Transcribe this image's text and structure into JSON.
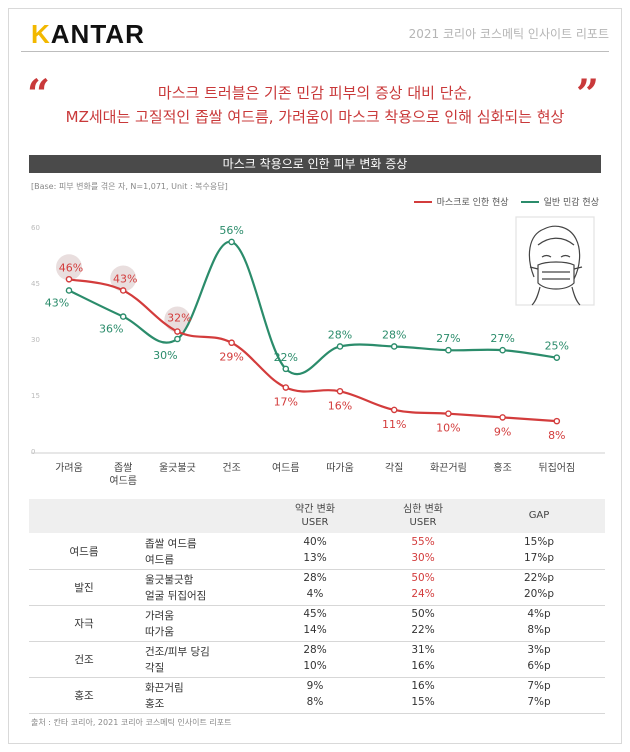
{
  "header": {
    "logo_k": "K",
    "logo_rest": "ANTAR",
    "report_title": "2021 코리아 코스메틱 인사이트 리포트"
  },
  "headline": {
    "open_quote": "“",
    "close_quote": "”",
    "line1": "마스크 트러블은 기존 민감 피부의  증상 대비 단순,",
    "line2": "MZ세대는 고질적인 좁쌀 여드름, 가려움이 마스크 착용으로 인해 심화되는 현상"
  },
  "chart_data": {
    "type": "line",
    "title": "마스크 착용으로 인한 피부 변화 증상",
    "base_note": "[Base: 피부 변화를 겪은 자, N=1,071, Unit : 복수응답]",
    "categories": [
      "가려움",
      "좁쌀\n여드름",
      "울긋불긋",
      "건조",
      "여드름",
      "따가움",
      "각질",
      "화끈거림",
      "홍조",
      "뒤집어짐"
    ],
    "y_ticks": [
      "60",
      "45",
      "30",
      "15",
      "0"
    ],
    "ylim": [
      0,
      60
    ],
    "legend_position": "top-right",
    "series": [
      {
        "name": "마스크로 인한 현상",
        "color": "#d33c3c",
        "values": [
          46,
          43,
          32,
          29,
          17,
          16,
          11,
          10,
          9,
          8
        ],
        "labels": [
          "46%",
          "43%",
          "32%",
          "29%",
          "17%",
          "16%",
          "11%",
          "10%",
          "9%",
          "8%"
        ]
      },
      {
        "name": "일반 민감 현상",
        "color": "#2b8c6b",
        "values": [
          43,
          36,
          30,
          56,
          22,
          28,
          28,
          27,
          27,
          25
        ],
        "labels": [
          "43%",
          "36%",
          "30%",
          "56%",
          "22%",
          "28%",
          "28%",
          "27%",
          "27%",
          "25%"
        ]
      }
    ],
    "highlighted_points": [
      "가려움",
      "좁쌀\n여드름",
      "울긋불긋"
    ]
  },
  "table": {
    "headers": [
      "약간 변화\nUSER",
      "심한 변화\nUSER",
      "GAP"
    ],
    "groups": [
      {
        "name": "여드름",
        "rows": [
          {
            "label": "좁쌀 여드름",
            "mild": "40%",
            "severe": "55%",
            "gap": "15%p",
            "highlight": true
          },
          {
            "label": "여드름",
            "mild": "13%",
            "severe": "30%",
            "gap": "17%p",
            "highlight": true
          }
        ]
      },
      {
        "name": "발진",
        "rows": [
          {
            "label": "울긋불긋함",
            "mild": "28%",
            "severe": "50%",
            "gap": "22%p",
            "highlight": true
          },
          {
            "label": "얼굴 뒤집어짐",
            "mild": "4%",
            "severe": "24%",
            "gap": "20%p",
            "highlight": true
          }
        ]
      },
      {
        "name": "자극",
        "rows": [
          {
            "label": "가려움",
            "mild": "45%",
            "severe": "50%",
            "gap": "4%p",
            "highlight": false
          },
          {
            "label": "따가움",
            "mild": "14%",
            "severe": "22%",
            "gap": "8%p",
            "highlight": false
          }
        ]
      },
      {
        "name": "건조",
        "rows": [
          {
            "label": "건조/피부 당김",
            "mild": "28%",
            "severe": "31%",
            "gap": "3%p",
            "highlight": false
          },
          {
            "label": "각질",
            "mild": "10%",
            "severe": "16%",
            "gap": "6%p",
            "highlight": false
          }
        ]
      },
      {
        "name": "홍조",
        "rows": [
          {
            "label": "화끈거림",
            "mild": "9%",
            "severe": "16%",
            "gap": "7%p",
            "highlight": false
          },
          {
            "label": "홍조",
            "mild": "8%",
            "severe": "15%",
            "gap": "7%p",
            "highlight": false
          }
        ]
      }
    ]
  },
  "source": "출처 : 칸타 코리아, 2021 코리아 코스메틱 인사이트 리포트",
  "colors": {
    "red": "#d33c3c",
    "green": "#2b8c6b",
    "headline": "#c9393a",
    "severe_highlight": "#d33c3c"
  },
  "illustration": "masked-face-icon"
}
